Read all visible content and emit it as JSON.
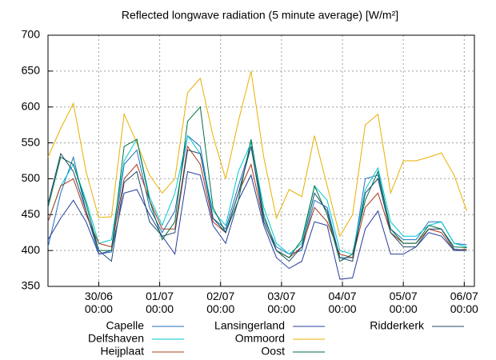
{
  "chart_data": {
    "type": "line",
    "title": "Reflected longwave  radiation (5 minute average) [W/m²]",
    "x": [
      -20,
      -15,
      -10,
      -5,
      0,
      5,
      10,
      15,
      20,
      25,
      30,
      35,
      40,
      45,
      50,
      55,
      60,
      65,
      70,
      75,
      80,
      85,
      90,
      95,
      100,
      105,
      110,
      115,
      120,
      125,
      130,
      135,
      140,
      145
    ],
    "xlim": [
      -20,
      148
    ],
    "xticks": [
      {
        "value": 0,
        "label": "30/06 00:00"
      },
      {
        "value": 24,
        "label": "01/07 00:00"
      },
      {
        "value": 48,
        "label": "02/07 00:00"
      },
      {
        "value": 72,
        "label": "03/07 00:00"
      },
      {
        "value": 96,
        "label": "04/07 00:00"
      },
      {
        "value": 120,
        "label": "05/07 00:00"
      },
      {
        "value": 144,
        "label": "06/07 00:00"
      }
    ],
    "ylim": [
      350,
      700
    ],
    "yticks": [
      350,
      400,
      450,
      500,
      550,
      600,
      650,
      700
    ],
    "grid": true,
    "series": [
      {
        "name": "Capelle",
        "color": "#1f6fc0",
        "values": [
          405,
          480,
          530,
          455,
          395,
          398,
          520,
          540,
          460,
          425,
          455,
          560,
          545,
          445,
          430,
          490,
          545,
          445,
          405,
          395,
          400,
          470,
          460,
          390,
          390,
          500,
          505,
          430,
          415,
          415,
          440,
          440,
          410,
          408
        ]
      },
      {
        "name": "Delfshaven",
        "color": "#00c8d2",
        "values": [
          440,
          490,
          520,
          470,
          410,
          415,
          525,
          555,
          475,
          435,
          480,
          560,
          535,
          455,
          435,
          510,
          550,
          460,
          410,
          395,
          410,
          490,
          470,
          400,
          395,
          485,
          515,
          440,
          420,
          420,
          435,
          440,
          410,
          405
        ]
      },
      {
        "name": "Heijplaat",
        "color": "#a8381c",
        "values": [
          440,
          490,
          500,
          450,
          410,
          405,
          500,
          520,
          470,
          430,
          430,
          545,
          520,
          440,
          425,
          480,
          520,
          440,
          400,
          390,
          405,
          460,
          440,
          395,
          390,
          460,
          480,
          425,
          410,
          410,
          430,
          425,
          400,
          402
        ]
      },
      {
        "name": "Lansingerland",
        "color": "#283c9c",
        "values": [
          415,
          445,
          470,
          440,
          395,
          400,
          480,
          485,
          450,
          420,
          395,
          510,
          505,
          435,
          410,
          470,
          505,
          435,
          390,
          375,
          385,
          440,
          435,
          360,
          362,
          430,
          455,
          395,
          395,
          405,
          425,
          420,
          400,
          400
        ]
      },
      {
        "name": "Ommoord",
        "color": "#e8b000",
        "values": [
          530,
          570,
          605,
          510,
          446,
          447,
          590,
          550,
          505,
          480,
          500,
          620,
          640,
          560,
          500,
          580,
          650,
          530,
          445,
          485,
          475,
          560,
          490,
          420,
          450,
          575,
          590,
          480,
          525,
          525,
          530,
          536,
          505,
          455
        ]
      },
      {
        "name": "Oost",
        "color": "#007040",
        "values": [
          460,
          530,
          520,
          465,
          400,
          400,
          545,
          555,
          470,
          415,
          440,
          580,
          600,
          460,
          425,
          470,
          555,
          450,
          400,
          390,
          415,
          490,
          450,
          385,
          395,
          470,
          510,
          430,
          410,
          410,
          435,
          430,
          405,
          404
        ]
      },
      {
        "name": "Ridderkerk",
        "color": "#1c4a6c",
        "values": [
          465,
          535,
          510,
          455,
          400,
          385,
          495,
          510,
          440,
          420,
          425,
          540,
          535,
          445,
          425,
          480,
          545,
          440,
          400,
          385,
          405,
          480,
          455,
          390,
          385,
          480,
          500,
          425,
          405,
          405,
          430,
          430,
          402,
          400
        ]
      }
    ]
  }
}
